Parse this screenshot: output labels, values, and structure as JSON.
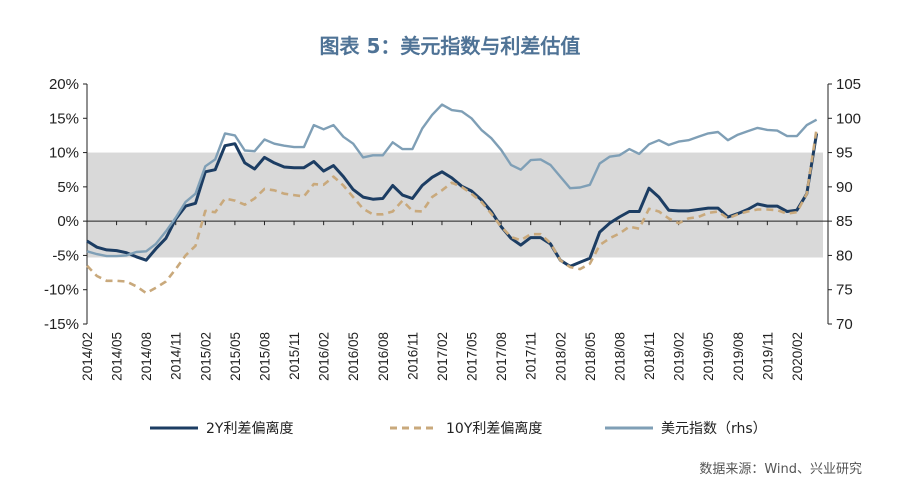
{
  "title": "图表 5：美元指数与利差估值",
  "source": "数据来源：Wind、兴业研究",
  "chart_data": {
    "type": "line",
    "title": "图表 5：美元指数与利差估值",
    "x_start": "2014/02",
    "x_frequency": "monthly",
    "x_tick_labels": [
      "2014/02",
      "2014/05",
      "2014/08",
      "2014/11",
      "2015/02",
      "2015/05",
      "2015/08",
      "2015/11",
      "2016/02",
      "2016/05",
      "2016/08",
      "2016/11",
      "2017/02",
      "2017/05",
      "2017/08",
      "2017/11",
      "2018/02",
      "2018/05",
      "2018/08",
      "2018/11",
      "2019/02",
      "2019/05",
      "2019/08",
      "2019/11",
      "2020/02"
    ],
    "y_left": {
      "range": [
        -15,
        20
      ],
      "ticks": [
        "-15%",
        "-10%",
        "-5%",
        "0%",
        "5%",
        "10%",
        "15%",
        "20%"
      ]
    },
    "y_right": {
      "range": [
        70,
        105
      ],
      "ticks": [
        "70",
        "75",
        "80",
        "85",
        "90",
        "95",
        "100",
        "105"
      ]
    },
    "shaded_band_left": [
      -5.3,
      10
    ],
    "grid": false,
    "legend_position": "bottom",
    "series": [
      {
        "name": "2Y利差偏离度",
        "axis": "left",
        "style": "solid",
        "color": "#1c3d63",
        "values": [
          -2.9,
          -3.8,
          -4.2,
          -4.3,
          -4.6,
          -5.2,
          -5.7,
          -4.0,
          -2.5,
          0.3,
          2.2,
          2.6,
          7.2,
          7.5,
          11.0,
          11.3,
          8.5,
          7.6,
          9.3,
          8.5,
          7.9,
          7.8,
          7.8,
          8.7,
          7.3,
          8.1,
          6.5,
          4.6,
          3.5,
          3.2,
          3.3,
          5.2,
          3.8,
          3.3,
          5.2,
          6.4,
          7.2,
          6.3,
          5.1,
          4.4,
          3.1,
          1.4,
          -0.8,
          -2.5,
          -3.5,
          -2.4,
          -2.4,
          -3.3,
          -5.7,
          -6.6,
          -6.0,
          -5.4,
          -1.6,
          -0.3,
          0.6,
          1.4,
          1.4,
          4.8,
          3.5,
          1.6,
          1.5,
          1.5,
          1.7,
          1.9,
          1.9,
          0.6,
          1.1,
          1.7,
          2.5,
          2.2,
          2.2,
          1.4,
          1.6,
          4.0,
          12.8
        ]
      },
      {
        "name": "10Y利差偏离度",
        "axis": "left",
        "style": "dashed",
        "color": "#c9a97c",
        "values": [
          -6.5,
          -8.0,
          -8.7,
          -8.7,
          -8.8,
          -9.5,
          -10.5,
          -9.7,
          -8.8,
          -7.0,
          -5.0,
          -3.6,
          1.5,
          1.3,
          3.3,
          3.0,
          2.4,
          3.3,
          4.7,
          4.5,
          4.0,
          3.8,
          3.6,
          5.4,
          5.3,
          6.5,
          5.2,
          3.5,
          1.8,
          1.0,
          1.0,
          1.4,
          3.0,
          1.5,
          1.4,
          3.5,
          4.5,
          5.6,
          5.0,
          4.0,
          2.8,
          1.1,
          -0.8,
          -2.3,
          -2.8,
          -1.9,
          -1.9,
          -3.2,
          -5.7,
          -6.7,
          -7.0,
          -6.2,
          -3.5,
          -2.5,
          -1.8,
          -0.8,
          -1.1,
          1.8,
          1.4,
          0.4,
          -0.3,
          0.4,
          0.6,
          1.2,
          1.4,
          0.4,
          1.0,
          1.4,
          1.7,
          1.7,
          1.6,
          1.1,
          1.3,
          4.0,
          13.5
        ]
      },
      {
        "name": "美元指数（rhs）",
        "axis": "right",
        "style": "solid",
        "color": "#7f9fb6",
        "values": [
          80.6,
          80.2,
          79.9,
          79.9,
          80.0,
          80.5,
          80.6,
          81.7,
          83.5,
          85.5,
          87.8,
          89.0,
          93.0,
          94.0,
          97.8,
          97.5,
          95.3,
          95.2,
          96.9,
          96.3,
          96.0,
          95.8,
          95.8,
          99.0,
          98.4,
          99.0,
          97.3,
          96.3,
          94.3,
          94.6,
          94.6,
          96.5,
          95.5,
          95.5,
          98.5,
          100.5,
          102.0,
          101.2,
          101.0,
          100.0,
          98.3,
          97.1,
          95.4,
          93.2,
          92.5,
          93.9,
          94.0,
          93.2,
          91.5,
          89.8,
          89.9,
          90.3,
          93.4,
          94.4,
          94.6,
          95.5,
          94.8,
          96.2,
          96.8,
          96.1,
          96.6,
          96.8,
          97.3,
          97.8,
          98.0,
          96.8,
          97.6,
          98.1,
          98.6,
          98.3,
          98.2,
          97.4,
          97.4,
          99.0,
          99.8
        ]
      }
    ]
  }
}
